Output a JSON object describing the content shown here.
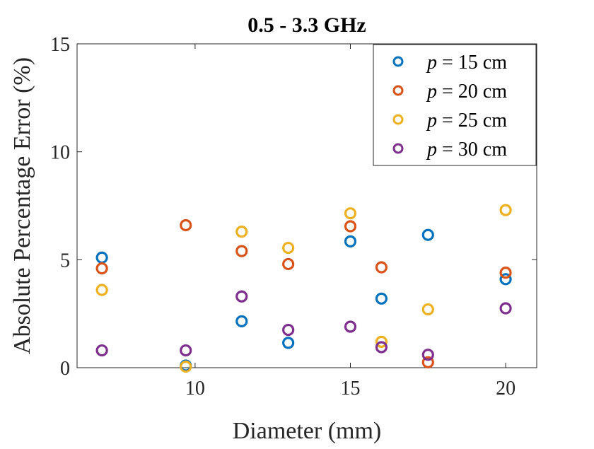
{
  "chart_data": {
    "type": "scatter",
    "title": "0.5 - 3.3 GHz",
    "xlabel": "Diameter (mm)",
    "ylabel": "Absolute Percentage Error (%)",
    "xlim": [
      6.2,
      21.0
    ],
    "ylim": [
      0,
      15
    ],
    "xticks": [
      10,
      15,
      20
    ],
    "yticks": [
      0,
      5,
      10,
      15
    ],
    "grid": false,
    "legend_position": "top-right",
    "series": [
      {
        "name": "p = 15 cm",
        "var": "p",
        "rest": " = 15 cm",
        "color": "#0072BD",
        "x": [
          7,
          9.7,
          11.5,
          13,
          15,
          16,
          17.5,
          20
        ],
        "y": [
          5.1,
          0.1,
          2.15,
          1.15,
          5.85,
          3.2,
          6.15,
          4.1
        ]
      },
      {
        "name": "p = 20 cm",
        "var": "p",
        "rest": " = 20 cm",
        "color": "#D95319",
        "x": [
          7,
          9.7,
          11.5,
          13,
          15,
          16,
          17.5,
          20
        ],
        "y": [
          4.6,
          6.6,
          5.4,
          4.8,
          6.55,
          4.65,
          0.25,
          4.4
        ]
      },
      {
        "name": "p = 25 cm",
        "var": "p",
        "rest": " = 25 cm",
        "color": "#EDB120",
        "x": [
          7,
          9.7,
          11.5,
          13,
          15,
          16,
          17.5,
          20
        ],
        "y": [
          3.6,
          0.05,
          6.3,
          5.55,
          7.15,
          1.2,
          2.7,
          7.3
        ]
      },
      {
        "name": "p = 30 cm",
        "var": "p",
        "rest": " = 30 cm",
        "color": "#7E2F8E",
        "x": [
          7,
          9.7,
          11.5,
          13,
          15,
          16,
          17.5,
          20
        ],
        "y": [
          0.8,
          0.8,
          3.3,
          1.75,
          1.9,
          0.95,
          0.6,
          2.75
        ]
      }
    ]
  }
}
